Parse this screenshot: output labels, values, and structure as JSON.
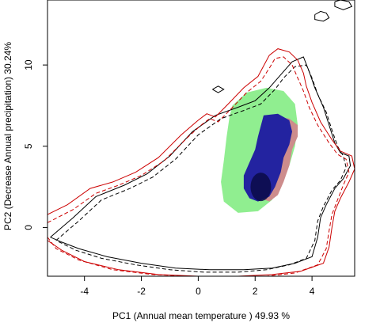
{
  "chart_data": {
    "type": "contour",
    "title": "",
    "xlabel": "PC1 (Annual mean temperature ) 49.93 %",
    "ylabel": "PC2 (Decrease Annual precipitation) 30.24%",
    "xlim": [
      -5.3,
      5.5
    ],
    "ylim": [
      -3.0,
      14.0
    ],
    "x_ticks": [
      -4,
      -2,
      0,
      2,
      4
    ],
    "y_ticks": [
      0,
      5,
      10
    ],
    "grid": false,
    "legend": "none",
    "colors": {
      "line_black": "#000000",
      "line_red": "#cc0000",
      "fill_green": "#90ee90",
      "fill_red": "#cd8c8c",
      "fill_blue": "#2323a0",
      "fill_blue_core": "#0a0a46"
    },
    "series": [
      {
        "style": "solid",
        "color": "black",
        "points": [
          [
            -5.2,
            -0.6
          ],
          [
            -4.4,
            0.6
          ],
          [
            -3.6,
            1.9
          ],
          [
            -2.6,
            2.6
          ],
          [
            -1.8,
            3.3
          ],
          [
            -1.0,
            4.4
          ],
          [
            -0.2,
            5.9
          ],
          [
            0.6,
            6.9
          ],
          [
            1.4,
            7.4
          ],
          [
            2.0,
            7.8
          ],
          [
            2.5,
            8.6
          ],
          [
            2.9,
            9.4
          ],
          [
            3.3,
            10.2
          ],
          [
            3.7,
            10.5
          ],
          [
            3.9,
            9.6
          ],
          [
            4.1,
            8.6
          ],
          [
            4.4,
            7.4
          ],
          [
            4.6,
            6.3
          ],
          [
            4.8,
            5.2
          ],
          [
            5.0,
            4.6
          ],
          [
            5.3,
            4.4
          ],
          [
            5.35,
            3.8
          ],
          [
            5.1,
            3.0
          ],
          [
            4.8,
            2.4
          ],
          [
            4.5,
            1.4
          ],
          [
            4.3,
            0.6
          ],
          [
            4.2,
            -0.6
          ],
          [
            4.0,
            -1.8
          ],
          [
            3.4,
            -2.2
          ],
          [
            2.6,
            -2.5
          ],
          [
            1.6,
            -2.6
          ],
          [
            0.4,
            -2.6
          ],
          [
            -0.8,
            -2.5
          ],
          [
            -2.0,
            -2.2
          ],
          [
            -3.2,
            -1.8
          ],
          [
            -4.2,
            -1.3
          ],
          [
            -4.8,
            -0.9
          ],
          [
            -5.2,
            -0.6
          ]
        ]
      },
      {
        "style": "dashed",
        "color": "black",
        "points": [
          [
            -5.0,
            -0.8
          ],
          [
            -4.2,
            0.4
          ],
          [
            -3.4,
            1.7
          ],
          [
            -2.4,
            2.4
          ],
          [
            -1.6,
            3.1
          ],
          [
            -0.8,
            4.2
          ],
          [
            0.0,
            5.7
          ],
          [
            0.8,
            6.7
          ],
          [
            1.6,
            7.2
          ],
          [
            2.2,
            7.6
          ],
          [
            2.7,
            8.5
          ],
          [
            3.0,
            9.2
          ],
          [
            3.4,
            9.9
          ],
          [
            3.8,
            10.0
          ],
          [
            4.0,
            9.2
          ],
          [
            4.2,
            8.2
          ],
          [
            4.5,
            7.1
          ],
          [
            4.7,
            6.0
          ],
          [
            4.9,
            5.0
          ],
          [
            5.1,
            4.4
          ],
          [
            5.2,
            3.7
          ],
          [
            5.0,
            2.9
          ],
          [
            4.7,
            2.3
          ],
          [
            4.4,
            1.3
          ],
          [
            4.2,
            0.4
          ],
          [
            4.1,
            -0.8
          ],
          [
            3.8,
            -1.9
          ],
          [
            3.2,
            -2.3
          ],
          [
            2.4,
            -2.6
          ],
          [
            1.4,
            -2.75
          ],
          [
            0.2,
            -2.75
          ],
          [
            -1.0,
            -2.6
          ],
          [
            -2.2,
            -2.3
          ],
          [
            -3.4,
            -1.9
          ],
          [
            -4.3,
            -1.4
          ],
          [
            -5.0,
            -0.8
          ]
        ]
      },
      {
        "style": "solid",
        "color": "red",
        "points": [
          [
            -5.3,
            0.8
          ],
          [
            -4.6,
            1.4
          ],
          [
            -3.8,
            2.4
          ],
          [
            -3.0,
            2.8
          ],
          [
            -2.2,
            3.4
          ],
          [
            -1.4,
            4.3
          ],
          [
            -0.6,
            5.7
          ],
          [
            0.0,
            6.6
          ],
          [
            0.3,
            7.0
          ],
          [
            0.6,
            6.8
          ],
          [
            1.0,
            7.5
          ],
          [
            1.6,
            8.6
          ],
          [
            2.1,
            9.3
          ],
          [
            2.5,
            10.6
          ],
          [
            2.8,
            11.0
          ],
          [
            3.2,
            10.8
          ],
          [
            3.5,
            10.3
          ],
          [
            3.7,
            9.5
          ],
          [
            3.8,
            8.7
          ],
          [
            4.0,
            7.7
          ],
          [
            4.3,
            6.5
          ],
          [
            4.7,
            5.4
          ],
          [
            5.0,
            4.7
          ],
          [
            5.4,
            4.4
          ],
          [
            5.5,
            3.6
          ],
          [
            5.3,
            2.8
          ],
          [
            5.0,
            1.8
          ],
          [
            4.8,
            1.0
          ],
          [
            4.7,
            0.0
          ],
          [
            4.6,
            -1.2
          ],
          [
            4.4,
            -2.2
          ],
          [
            3.6,
            -2.7
          ],
          [
            2.6,
            -2.9
          ],
          [
            1.4,
            -3.0
          ],
          [
            0.0,
            -3.0
          ],
          [
            -1.4,
            -2.9
          ],
          [
            -2.8,
            -2.6
          ],
          [
            -4.0,
            -2.1
          ],
          [
            -4.8,
            -1.4
          ],
          [
            -5.3,
            -0.8
          ]
        ]
      },
      {
        "style": "dashed",
        "color": "red",
        "points": [
          [
            -5.3,
            0.3
          ],
          [
            -4.4,
            1.1
          ],
          [
            -3.6,
            2.1
          ],
          [
            -2.8,
            2.6
          ],
          [
            -2.0,
            3.2
          ],
          [
            -1.2,
            4.1
          ],
          [
            -0.4,
            5.5
          ],
          [
            0.1,
            6.3
          ],
          [
            0.4,
            6.7
          ],
          [
            0.7,
            6.5
          ],
          [
            1.1,
            7.2
          ],
          [
            1.7,
            8.3
          ],
          [
            2.2,
            9.0
          ],
          [
            2.5,
            9.8
          ],
          [
            2.7,
            10.4
          ],
          [
            3.0,
            10.5
          ],
          [
            3.3,
            10.0
          ],
          [
            3.5,
            9.2
          ],
          [
            3.7,
            8.4
          ],
          [
            3.9,
            7.4
          ],
          [
            4.2,
            6.3
          ],
          [
            4.6,
            5.2
          ],
          [
            4.9,
            4.5
          ],
          [
            5.2,
            4.2
          ],
          [
            5.3,
            3.4
          ],
          [
            5.1,
            2.6
          ],
          [
            4.9,
            1.7
          ],
          [
            4.7,
            0.8
          ],
          [
            4.6,
            -0.2
          ],
          [
            4.5,
            -1.3
          ],
          [
            4.2,
            -2.3
          ],
          [
            3.4,
            -2.8
          ],
          [
            2.4,
            -3.0
          ],
          [
            1.2,
            -3.0
          ],
          [
            -0.2,
            -3.0
          ],
          [
            -1.6,
            -2.9
          ],
          [
            -3.0,
            -2.6
          ],
          [
            -4.2,
            -2.0
          ],
          [
            -5.0,
            -1.3
          ],
          [
            -5.3,
            -0.6
          ]
        ]
      },
      {
        "style": "solid",
        "color": "black",
        "points": [
          [
            4.1,
            13.1
          ],
          [
            4.3,
            13.3
          ],
          [
            4.5,
            13.2
          ],
          [
            4.6,
            12.9
          ],
          [
            4.4,
            12.7
          ],
          [
            4.1,
            12.8
          ],
          [
            4.1,
            13.1
          ]
        ]
      },
      {
        "style": "solid",
        "color": "black",
        "points": [
          [
            4.8,
            13.9
          ],
          [
            5.0,
            14.0
          ],
          [
            5.3,
            13.9
          ],
          [
            5.4,
            13.6
          ],
          [
            5.1,
            13.4
          ],
          [
            4.8,
            13.6
          ],
          [
            4.8,
            13.9
          ]
        ]
      },
      {
        "style": "solid",
        "color": "black",
        "points": [
          [
            0.5,
            8.5
          ],
          [
            0.7,
            8.7
          ],
          [
            0.9,
            8.5
          ],
          [
            0.7,
            8.3
          ],
          [
            0.5,
            8.5
          ]
        ]
      }
    ],
    "density_regions": [
      {
        "color": "green",
        "outline": [
          [
            1.2,
            7.5
          ],
          [
            1.7,
            8.3
          ],
          [
            2.4,
            8.6
          ],
          [
            3.0,
            8.4
          ],
          [
            3.4,
            7.6
          ],
          [
            3.5,
            6.3
          ],
          [
            3.4,
            5.0
          ],
          [
            3.2,
            3.8
          ],
          [
            2.9,
            2.7
          ],
          [
            2.6,
            1.7
          ],
          [
            2.1,
            1.0
          ],
          [
            1.4,
            0.9
          ],
          [
            0.9,
            1.6
          ],
          [
            0.8,
            2.8
          ],
          [
            0.9,
            4.1
          ],
          [
            1.0,
            5.6
          ],
          [
            1.1,
            6.8
          ],
          [
            1.2,
            7.5
          ]
        ]
      },
      {
        "color": "red",
        "outline": [
          [
            2.8,
            6.8
          ],
          [
            3.2,
            6.7
          ],
          [
            3.5,
            6.3
          ],
          [
            3.5,
            5.6
          ],
          [
            3.3,
            4.8
          ],
          [
            3.2,
            3.8
          ],
          [
            3.0,
            2.8
          ],
          [
            2.8,
            2.0
          ],
          [
            2.5,
            1.6
          ],
          [
            2.2,
            1.8
          ],
          [
            2.2,
            2.6
          ],
          [
            2.4,
            3.6
          ],
          [
            2.6,
            4.6
          ],
          [
            2.7,
            5.6
          ],
          [
            2.8,
            6.8
          ]
        ]
      },
      {
        "color": "blue",
        "outline": [
          [
            2.3,
            6.9
          ],
          [
            2.8,
            7.0
          ],
          [
            3.2,
            6.6
          ],
          [
            3.3,
            5.9
          ],
          [
            3.2,
            5.1
          ],
          [
            3.0,
            4.3
          ],
          [
            2.9,
            3.4
          ],
          [
            2.7,
            2.5
          ],
          [
            2.5,
            1.9
          ],
          [
            2.1,
            1.6
          ],
          [
            1.8,
            1.8
          ],
          [
            1.6,
            2.4
          ],
          [
            1.6,
            3.2
          ],
          [
            1.8,
            4.0
          ],
          [
            2.0,
            4.8
          ],
          [
            2.1,
            5.6
          ],
          [
            2.3,
            6.9
          ]
        ]
      }
    ]
  }
}
